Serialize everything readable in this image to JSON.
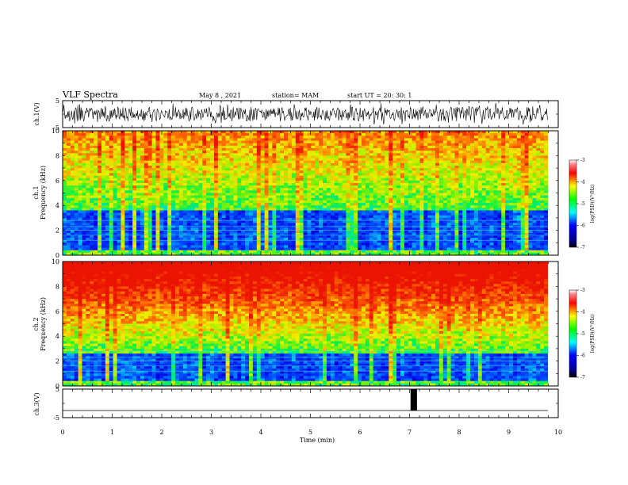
{
  "header": {
    "title": "VLF Spectra",
    "date": "May 8 , 2021",
    "station": "station= MAM",
    "start": "start UT = 20: 30: 1"
  },
  "chart_data": [
    {
      "type": "line",
      "ylabel": "ch.1(V)",
      "ylim": [
        -5,
        5
      ],
      "yticks": [
        "5",
        "-5"
      ],
      "xlim": [
        0,
        10
      ],
      "description_values": "dense noise waveform between about -4 and 4 V"
    },
    {
      "type": "heatmap",
      "ylabel": "ch.1\nFrequency (kHz)",
      "ylabel_lines": [
        "ch.1",
        "Frequency (kHz)"
      ],
      "ylim": [
        0,
        10
      ],
      "yticks": [
        "0",
        "2",
        "4",
        "6",
        "8",
        "10"
      ],
      "xlim": [
        0,
        10
      ],
      "colorbar": {
        "label": "log(PSD)(V²/Hz)",
        "range": [
          -7,
          -3
        ],
        "ticks": [
          "-3",
          "-4",
          "-5",
          "-6",
          "-7"
        ]
      }
    },
    {
      "type": "heatmap",
      "ylabel": "ch.2\nFrequency (kHz)",
      "ylabel_lines": [
        "ch.2",
        "Frequency (kHz)"
      ],
      "ylim": [
        0,
        10
      ],
      "yticks": [
        "0",
        "2",
        "4",
        "6",
        "8",
        "10"
      ],
      "xlim": [
        0,
        10
      ],
      "colorbar": {
        "label": "log(PSD)(V²/Hz)",
        "range": [
          -7,
          -3
        ],
        "ticks": [
          "-3",
          "-4",
          "-5",
          "-6",
          "-7"
        ]
      }
    },
    {
      "type": "line",
      "ylabel": "ch.3(V)",
      "ylim": [
        -5,
        5
      ],
      "yticks": [
        "5",
        "-5"
      ],
      "baseline_value": -2.5,
      "pulse": {
        "start_min": 7.02,
        "end_min": 7.15,
        "high_v": 5
      }
    }
  ],
  "x_axis": {
    "label": "Time (min)",
    "ticks": [
      "0",
      "1",
      "2",
      "3",
      "4",
      "5",
      "6",
      "7",
      "8",
      "9",
      "10"
    ]
  },
  "colors": {
    "colormap": [
      "#000080",
      "#0000ff",
      "#0080ff",
      "#00ffff",
      "#00ff80",
      "#80ff00",
      "#ffff00",
      "#ff8000",
      "#ff0000",
      "#ffffff"
    ]
  }
}
